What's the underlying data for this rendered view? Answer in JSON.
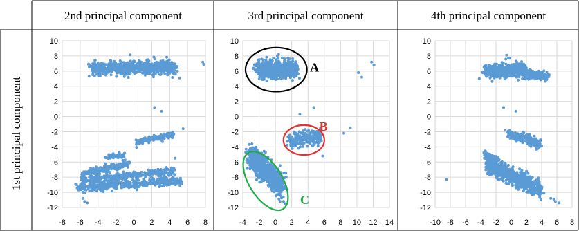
{
  "row_title": "1st principal component",
  "chart_data": [
    {
      "type": "scatter",
      "title": "2nd principal component",
      "xlim": [
        -8,
        8
      ],
      "ylim": [
        -12,
        10
      ],
      "xticks": [
        -8,
        -6,
        -4,
        -2,
        0,
        2,
        4,
        6,
        8
      ],
      "yticks": [
        10,
        8,
        6,
        4,
        2,
        0,
        -2,
        -4,
        -6,
        -8,
        -10,
        -12
      ],
      "grid": true,
      "color": "#5B9BD5",
      "clusters": [
        {
          "x0": -4.8,
          "y0": 6.4,
          "x1": 4.6,
          "y1": 6.5,
          "spread": 0.45,
          "n": 700
        },
        {
          "x0": 0.3,
          "y0": -3.4,
          "x1": 4.5,
          "y1": -2.3,
          "spread": 0.18,
          "n": 170
        },
        {
          "x0": -3.2,
          "y0": -5.4,
          "x1": -1.0,
          "y1": -5.0,
          "spread": 0.15,
          "n": 50
        },
        {
          "x0": -5.8,
          "y0": -7.6,
          "x1": -0.5,
          "y1": -6.2,
          "spread": 0.2,
          "n": 230
        },
        {
          "x0": -6.3,
          "y0": -9.4,
          "x1": 5.3,
          "y1": -8.4,
          "spread": 0.28,
          "n": 450
        },
        {
          "x0": -5.8,
          "y0": -8.4,
          "x1": 4.5,
          "y1": -7.2,
          "spread": 0.25,
          "n": 350
        }
      ],
      "points": [
        [
          7.7,
          7.2
        ],
        [
          7.8,
          6.9
        ],
        [
          2.3,
          1.2
        ],
        [
          3.1,
          0.7
        ],
        [
          5.1,
          5.1
        ],
        [
          5.5,
          -1.6
        ],
        [
          -5.7,
          -10.8
        ],
        [
          -5.2,
          -11.4
        ],
        [
          -5.5,
          -11.2
        ],
        [
          4.6,
          -5.5
        ],
        [
          -4.3,
          -8.7
        ],
        [
          -6.4,
          -9.0
        ],
        [
          4.5,
          5.6
        ],
        [
          3.2,
          -3.3
        ],
        [
          -1.2,
          -6.1
        ]
      ]
    },
    {
      "type": "scatter",
      "title": "3rd principal component",
      "xlim": [
        -4,
        14
      ],
      "ylim": [
        -12,
        10
      ],
      "xticks": [
        -4,
        -2,
        0,
        2,
        4,
        6,
        8,
        10,
        12,
        14
      ],
      "yticks": [
        10,
        8,
        6,
        4,
        2,
        0,
        -2,
        -4,
        -6,
        -8,
        -10,
        -12
      ],
      "grid": true,
      "color": "#5B9BD5",
      "clusters": [
        {
          "x0": -2.2,
          "y0": 6.2,
          "x1": 2.6,
          "y1": 6.2,
          "spread": 0.55,
          "n": 700
        },
        {
          "x0": 1.5,
          "y0": -3.2,
          "x1": 5.5,
          "y1": -2.6,
          "spread": 0.45,
          "n": 260
        },
        {
          "x0": -3.0,
          "y0": -5.3,
          "x1": 0.8,
          "y1": -9.2,
          "spread": 0.75,
          "n": 900
        }
      ],
      "points": [
        [
          0.4,
          8.2
        ],
        [
          0.1,
          7.5
        ],
        [
          10.2,
          5.8
        ],
        [
          10.6,
          5.2
        ],
        [
          11.8,
          7.2
        ],
        [
          12.1,
          6.8
        ],
        [
          3.0,
          0.3
        ],
        [
          4.7,
          1.2
        ],
        [
          8.4,
          -2.2
        ],
        [
          9.2,
          -1.5
        ],
        [
          5.8,
          -5.2
        ],
        [
          -3.6,
          -4.3
        ],
        [
          -3.4,
          -6.1
        ],
        [
          0.2,
          -10.3
        ],
        [
          1.2,
          -11.5
        ],
        [
          1.0,
          -11.2
        ],
        [
          3.6,
          -2.9
        ],
        [
          2.5,
          -3.8
        ]
      ],
      "annotations": [
        {
          "text": "A",
          "color": "#000000",
          "cx": 0.1,
          "cy": 6.2,
          "rx": 3.9,
          "ry": 2.8,
          "rotate": 0,
          "lx": 4.8,
          "ly": 6.5
        },
        {
          "text": "B",
          "color": "#E8312F",
          "cx": 3.5,
          "cy": -3.1,
          "rx": 2.6,
          "ry": 1.9,
          "rotate": 0,
          "lx": 5.9,
          "ly": -1.3
        },
        {
          "text": "C",
          "color": "#22AA4A",
          "cx": -1.2,
          "cy": -8.5,
          "rx": 4.2,
          "ry": 2.1,
          "rotate": 58,
          "lx": 3.6,
          "ly": -11.0
        }
      ]
    },
    {
      "type": "scatter",
      "title": "4th principal component",
      "xlim": [
        -10,
        8
      ],
      "ylim": [
        -12,
        10
      ],
      "xticks": [
        -10,
        -8,
        -6,
        -4,
        -2,
        0,
        2,
        4,
        6,
        8
      ],
      "yticks": [
        10,
        8,
        6,
        4,
        2,
        0,
        -2,
        -4,
        -6,
        -8,
        -10,
        -12
      ],
      "grid": true,
      "color": "#5B9BD5",
      "clusters": [
        {
          "x0": -3.5,
          "y0": 6.0,
          "x1": 2.0,
          "y1": 6.2,
          "spread": 0.45,
          "n": 500
        },
        {
          "x0": 1.5,
          "y0": 5.6,
          "x1": 5.0,
          "y1": 5.3,
          "spread": 0.25,
          "n": 180
        },
        {
          "x0": -0.3,
          "y0": -2.3,
          "x1": 3.8,
          "y1": -3.6,
          "spread": 0.3,
          "n": 200
        },
        {
          "x0": -3.5,
          "y0": -5.0,
          "x1": -1.8,
          "y1": -5.6,
          "spread": 0.2,
          "n": 60
        },
        {
          "x0": -3.2,
          "y0": -6.3,
          "x1": 3.8,
          "y1": -9.6,
          "spread": 0.55,
          "n": 750
        }
      ],
      "points": [
        [
          -0.6,
          8.1
        ],
        [
          -0.2,
          7.7
        ],
        [
          -4.2,
          5.0
        ],
        [
          -1.0,
          1.2
        ],
        [
          0.6,
          0.7
        ],
        [
          -0.8,
          -1.8
        ],
        [
          -8.5,
          -8.3
        ],
        [
          5.2,
          -10.8
        ],
        [
          5.8,
          -11.2
        ],
        [
          6.3,
          -11.4
        ],
        [
          5.6,
          -10.9
        ],
        [
          3.8,
          -9.8
        ],
        [
          4.3,
          -10.1
        ]
      ]
    }
  ]
}
